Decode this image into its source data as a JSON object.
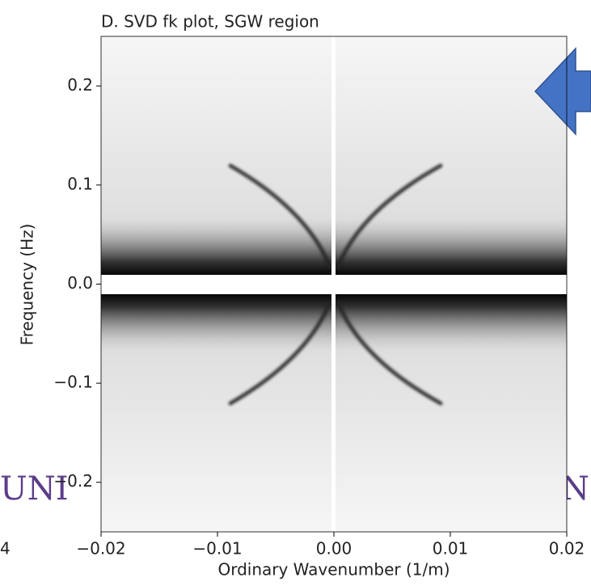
{
  "chart_data": {
    "type": "image",
    "title": "D. SVD fk plot, SGW region",
    "xlabel": "Ordinary Wavenumber (1/m)",
    "ylabel": "Frequency (Hz)",
    "xlim": [
      -0.02,
      0.02
    ],
    "ylim": [
      -0.25,
      0.25
    ],
    "xticks": [
      {
        "value": -0.02,
        "label": "−0.02"
      },
      {
        "value": -0.01,
        "label": "−0.01"
      },
      {
        "value": 0,
        "label": "0.00"
      },
      {
        "value": 0.01,
        "label": "0.01"
      },
      {
        "value": 0.02,
        "label": "0.02"
      }
    ],
    "yticks": [
      {
        "value": 0.2,
        "label": "0.2"
      },
      {
        "value": 0.1,
        "label": "0.1"
      },
      {
        "value": 0,
        "label": "0.0"
      },
      {
        "value": -0.1,
        "label": "−0.1"
      },
      {
        "value": -0.2,
        "label": "−0.2"
      }
    ]
  },
  "background_text": {
    "left": "UNI",
    "right": "N",
    "cut_label": "4"
  }
}
